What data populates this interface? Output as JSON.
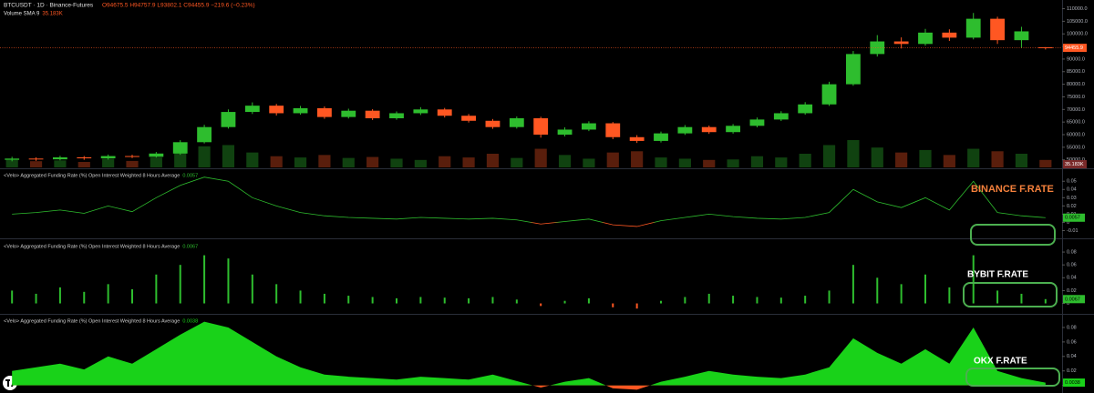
{
  "chart_data": [
    {
      "type": "candlestick",
      "title": "BTCUSDT · 1D · Binance-Futures",
      "subtitle": "O94675.5 H94757.9 L93802.1 C94455.9 −219.6 (−0.23%)",
      "volume_title": "Volume SMA 9",
      "volume_label": "35.183K",
      "up_color": "#2ebd2e",
      "down_color": "#ff5722",
      "open": [
        50000,
        50500,
        50200,
        51000,
        50600,
        51500,
        51200,
        52500,
        57000,
        63000,
        69000,
        71500,
        68500,
        70500,
        67000,
        69500,
        66500,
        68500,
        70000,
        67500,
        65500,
        63000,
        66500,
        60000,
        62000,
        64500,
        59000,
        57500,
        60500,
        63000,
        61000,
        63500,
        66000,
        68500,
        72000,
        80000,
        92000,
        97000,
        96000,
        100500,
        98500,
        106000,
        97500,
        94675.5
      ],
      "high": [
        51200,
        51000,
        51600,
        51500,
        52100,
        52000,
        53100,
        57800,
        63900,
        70000,
        72800,
        72200,
        71400,
        71200,
        70300,
        70100,
        69200,
        70900,
        70600,
        68200,
        66200,
        67200,
        67100,
        62900,
        65300,
        65000,
        59800,
        61200,
        63800,
        63600,
        64200,
        66800,
        69300,
        72900,
        81000,
        93200,
        99500,
        98600,
        102000,
        101800,
        108300,
        106800,
        102800,
        94757.9
      ],
      "low": [
        49400,
        49600,
        49800,
        50000,
        50100,
        50700,
        50900,
        52000,
        56500,
        62400,
        68200,
        67600,
        67900,
        66300,
        66400,
        65800,
        65900,
        67800,
        66800,
        64800,
        62300,
        62400,
        58800,
        59300,
        61400,
        58200,
        56700,
        56900,
        59900,
        60300,
        60400,
        62900,
        65400,
        67900,
        71400,
        79400,
        91000,
        94200,
        95300,
        97200,
        97800,
        96000,
        94500,
        93802.1
      ],
      "close": [
        50500,
        50200,
        51000,
        50600,
        51500,
        51200,
        52500,
        57000,
        63000,
        69000,
        71500,
        68500,
        70500,
        67000,
        69500,
        66500,
        68500,
        70000,
        67500,
        65500,
        63000,
        66500,
        60000,
        62000,
        64500,
        59000,
        57500,
        60500,
        63000,
        61000,
        63500,
        66000,
        68500,
        72000,
        80000,
        92000,
        97000,
        96000,
        100500,
        98500,
        106000,
        97500,
        101000,
        94455.9
      ],
      "volume": [
        30,
        25,
        28,
        22,
        35,
        26,
        40,
        70,
        85,
        90,
        60,
        45,
        40,
        50,
        38,
        42,
        35,
        30,
        45,
        40,
        55,
        38,
        75,
        50,
        35,
        60,
        65,
        40,
        35,
        30,
        32,
        45,
        40,
        55,
        90,
        110,
        80,
        60,
        70,
        50,
        75,
        65,
        55,
        30
      ],
      "ylim": [
        47000,
        112000
      ],
      "yticks": [
        {
          "value": 110000,
          "label": "110000.0"
        },
        {
          "value": 105000,
          "label": "105000.0"
        },
        {
          "value": 100000,
          "label": "100000.0"
        },
        {
          "value": 95000,
          "label": "95000.0"
        },
        {
          "value": 90000,
          "label": "90000.0"
        },
        {
          "value": 85000,
          "label": "85000.0"
        },
        {
          "value": 80000,
          "label": "80000.0"
        },
        {
          "value": 75000,
          "label": "75000.0"
        },
        {
          "value": 70000,
          "label": "70000.0"
        },
        {
          "value": 65000,
          "label": "65000.0"
        },
        {
          "value": 60000,
          "label": "60000.0"
        },
        {
          "value": 55000,
          "label": "55000.0"
        },
        {
          "value": 50000,
          "label": "50000.0"
        }
      ]
    },
    {
      "type": "line",
      "title": "<Velo> Aggregated Funding Rate (%) Open Interest Weighted 8 Hours Average",
      "annotation": "BINANCE F.RATE",
      "annotation_color": "#f5813c",
      "series": [
        {
          "color": "#2ebd2e",
          "negative_color": "#ff5722",
          "values": [
            0.01,
            0.012,
            0.015,
            0.011,
            0.02,
            0.013,
            0.03,
            0.045,
            0.055,
            0.05,
            0.03,
            0.02,
            0.012,
            0.008,
            0.006,
            0.005,
            0.004,
            0.006,
            0.005,
            0.004,
            0.005,
            0.003,
            -0.002,
            0.001,
            0.004,
            -0.003,
            -0.005,
            0.002,
            0.006,
            0.01,
            0.007,
            0.005,
            0.004,
            0.006,
            0.012,
            0.04,
            0.025,
            0.018,
            0.03,
            0.015,
            0.05,
            0.012,
            0.008,
            0.0057
          ]
        }
      ],
      "ylim": [
        -0.015,
        0.058
      ],
      "yticks": [
        0.05,
        0.04,
        0.03,
        0.02,
        0.01,
        0,
        -0.01
      ]
    },
    {
      "type": "bar",
      "title": "<Velo> Aggregated Funding Rate (%) Open Interest Weighted 8 Hours Average",
      "annotation": "BYBIT F.RATE",
      "annotation_color": "#ffffff",
      "series": [
        {
          "color": "#2ebd2e",
          "negative_color": "#ff5722",
          "values": [
            0.02,
            0.015,
            0.025,
            0.018,
            0.03,
            0.022,
            0.045,
            0.06,
            0.075,
            0.07,
            0.045,
            0.03,
            0.02,
            0.015,
            0.012,
            0.01,
            0.008,
            0.01,
            0.009,
            0.008,
            0.01,
            0.006,
            -0.004,
            0.004,
            0.008,
            -0.006,
            -0.008,
            0.004,
            0.01,
            0.015,
            0.012,
            0.01,
            0.009,
            0.012,
            0.02,
            0.06,
            0.04,
            0.03,
            0.045,
            0.025,
            0.075,
            0.02,
            0.015,
            0.0067
          ]
        }
      ],
      "ylim": [
        -0.012,
        0.09
      ],
      "yticks": [
        0.08,
        0.06,
        0.04,
        0.02,
        0
      ]
    },
    {
      "type": "area",
      "title": "<Velo> Aggregated Funding Rate (%) Open Interest Weighted 8 Hours Average",
      "annotation": "OKX F.RATE",
      "annotation_color": "#ffffff",
      "series": [
        {
          "color": "#19d219",
          "negative_color": "#ff5722",
          "values": [
            0.02,
            0.025,
            0.03,
            0.022,
            0.04,
            0.03,
            0.05,
            0.07,
            0.088,
            0.08,
            0.06,
            0.04,
            0.025,
            0.015,
            0.012,
            0.01,
            0.008,
            0.012,
            0.01,
            0.008,
            0.015,
            0.006,
            -0.003,
            0.005,
            0.01,
            -0.004,
            -0.006,
            0.005,
            0.012,
            0.02,
            0.015,
            0.012,
            0.01,
            0.015,
            0.025,
            0.065,
            0.045,
            0.03,
            0.05,
            0.03,
            0.08,
            0.02,
            0.01,
            0.0038
          ]
        }
      ],
      "ylim": [
        -0.008,
        0.09
      ],
      "yticks": [
        0.08,
        0.06,
        0.04,
        0.02,
        0
      ]
    }
  ]
}
